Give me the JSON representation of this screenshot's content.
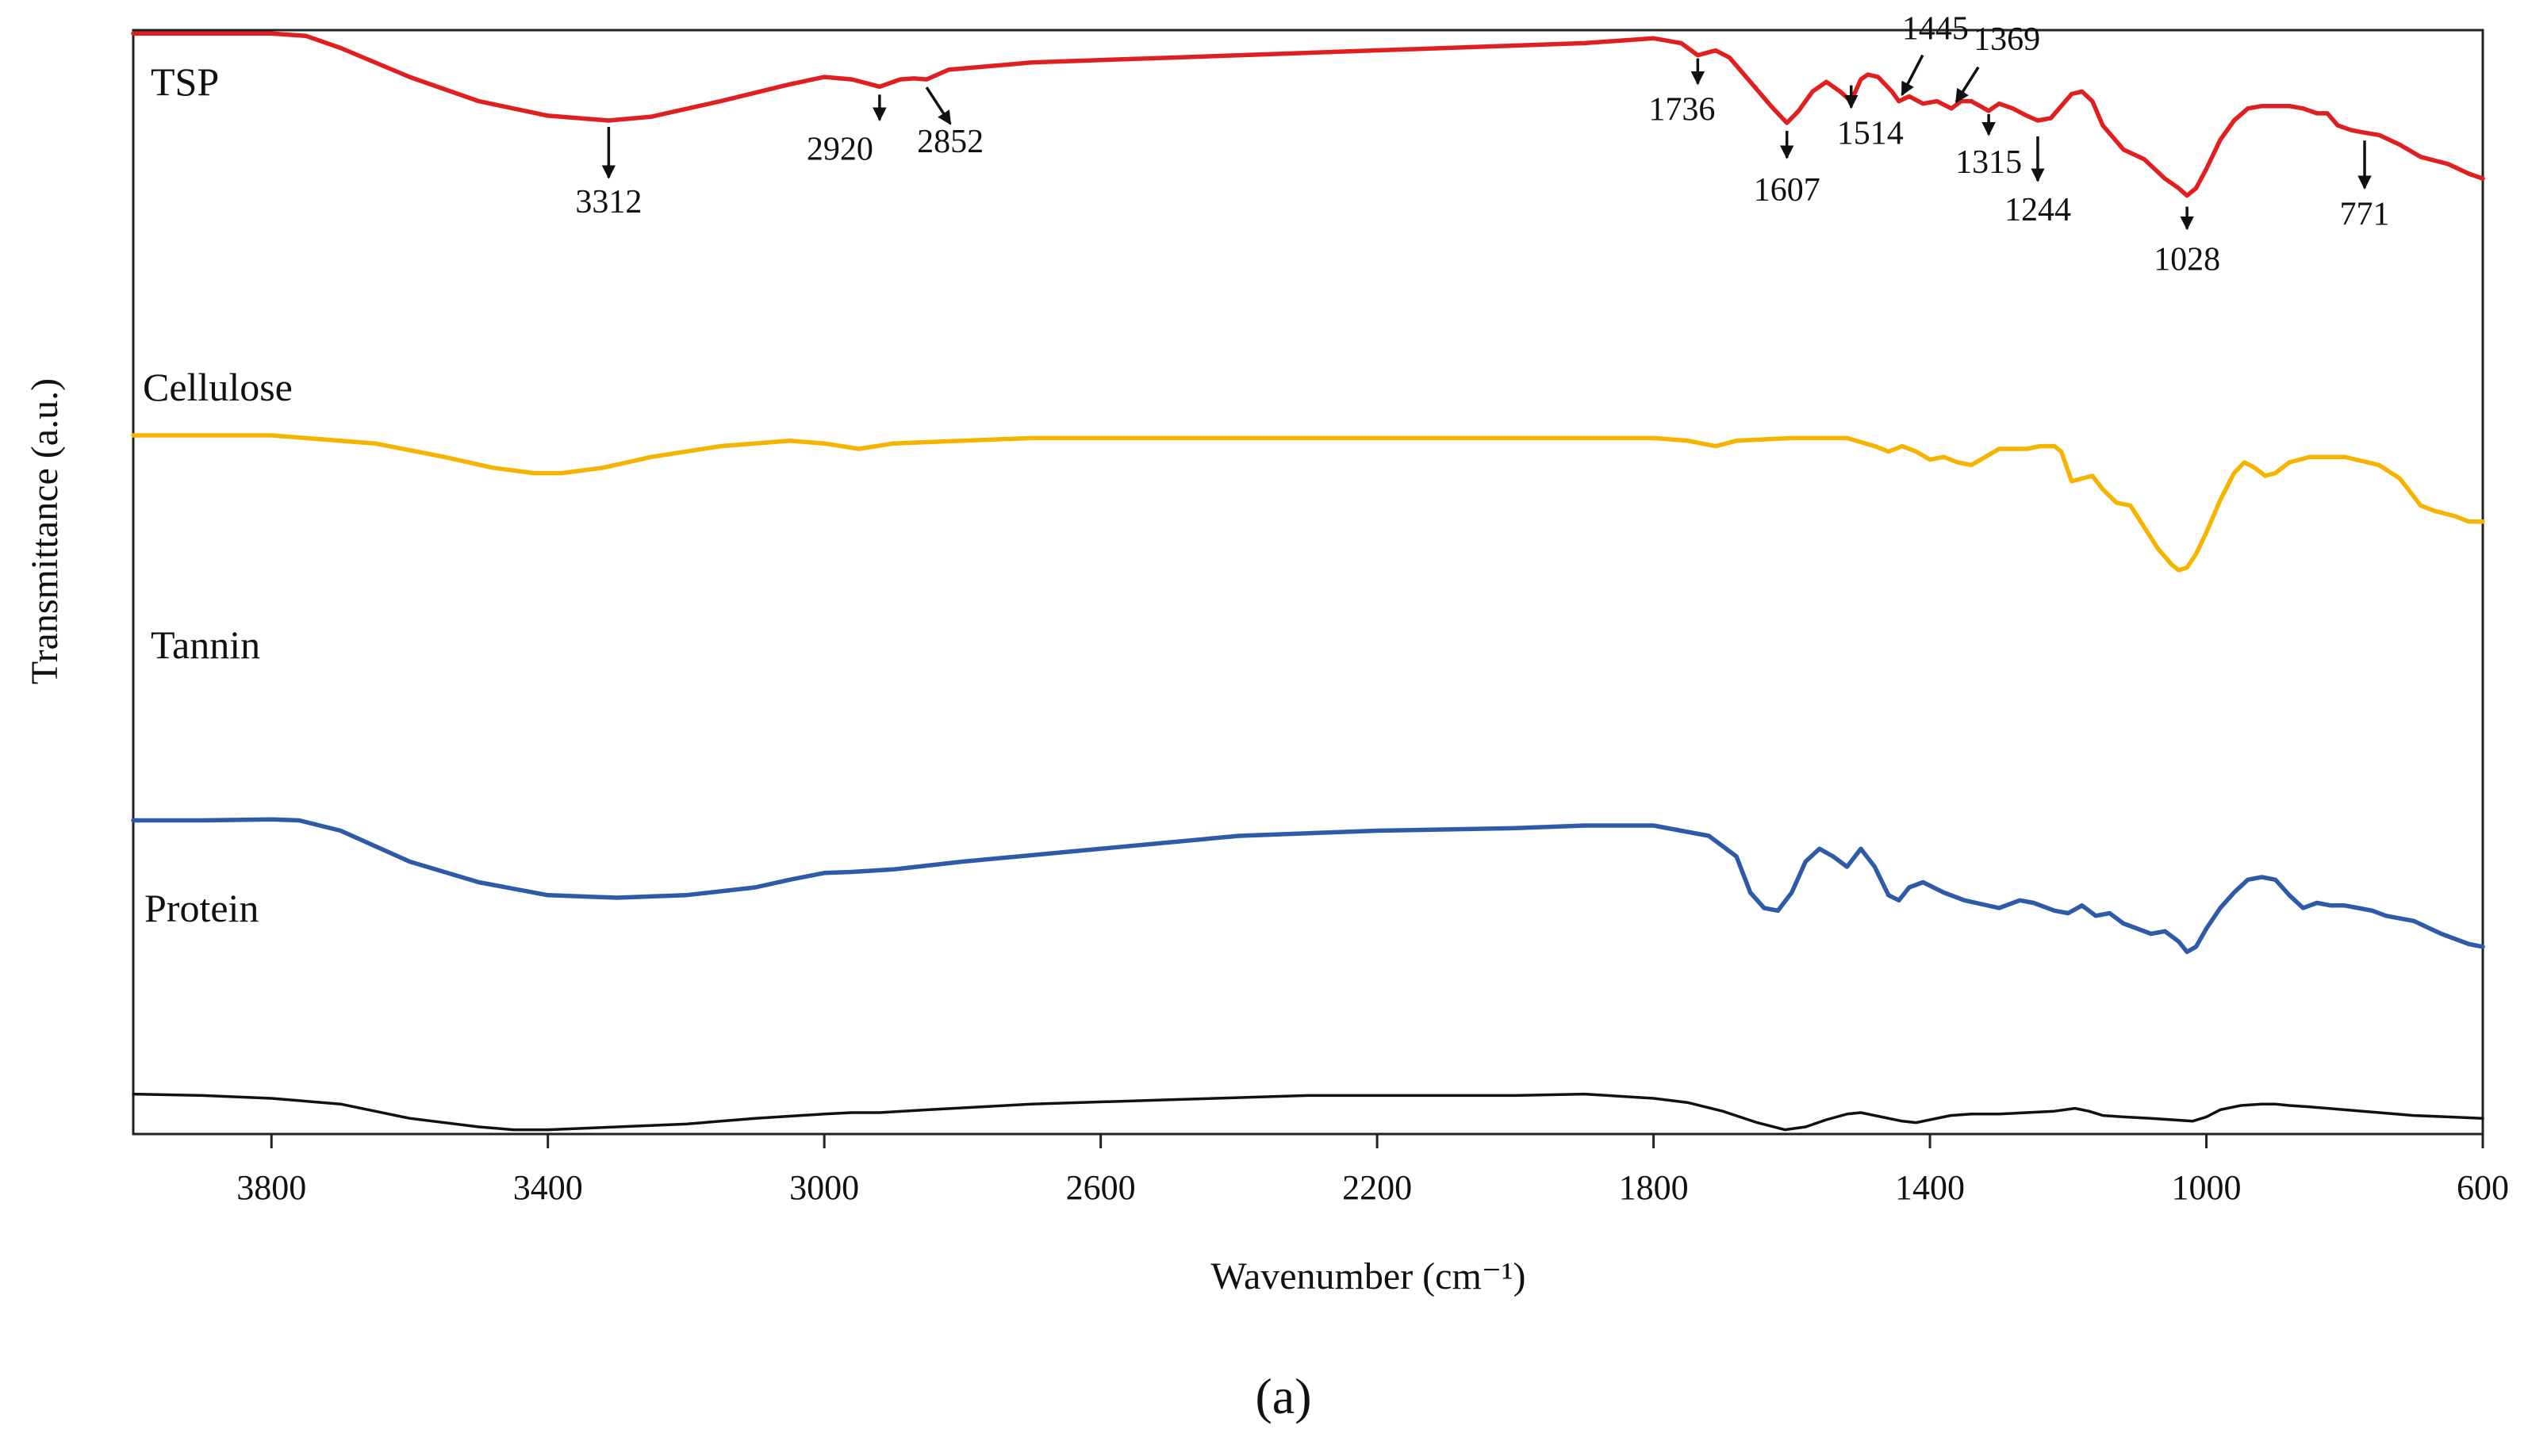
{
  "chart_data": {
    "type": "line",
    "title": "",
    "panel_label": "(a)",
    "xlabel": "Wavenumber (cm⁻¹)",
    "ylabel": "Transmittance (a.u.)",
    "xlim": [
      4000,
      600
    ],
    "x_reversed": true,
    "ylim": [
      0,
      100
    ],
    "grid": false,
    "xticks": [
      3800,
      3400,
      3000,
      2600,
      2200,
      1800,
      1400,
      1000,
      600
    ],
    "yticks": [],
    "series": [
      {
        "name": "TSP",
        "color": "#e02020",
        "points": [
          [
            4000,
            98
          ],
          [
            3900,
            98
          ],
          [
            3800,
            98
          ],
          [
            3750,
            97.5
          ],
          [
            3700,
            95
          ],
          [
            3600,
            89
          ],
          [
            3500,
            84
          ],
          [
            3400,
            81
          ],
          [
            3312,
            80
          ],
          [
            3250,
            80.8
          ],
          [
            3150,
            84
          ],
          [
            3050,
            87.5
          ],
          [
            3000,
            89
          ],
          [
            2960,
            88.5
          ],
          [
            2920,
            87
          ],
          [
            2890,
            88.5
          ],
          [
            2870,
            88.7
          ],
          [
            2852,
            88.5
          ],
          [
            2820,
            90.5
          ],
          [
            2700,
            92
          ],
          [
            2500,
            93
          ],
          [
            2300,
            94
          ],
          [
            2100,
            95
          ],
          [
            1900,
            96
          ],
          [
            1800,
            97
          ],
          [
            1760,
            96
          ],
          [
            1736,
            93.5
          ],
          [
            1710,
            94.5
          ],
          [
            1690,
            93
          ],
          [
            1660,
            88
          ],
          [
            1630,
            83
          ],
          [
            1607,
            79.5
          ],
          [
            1590,
            82
          ],
          [
            1570,
            86
          ],
          [
            1550,
            88
          ],
          [
            1530,
            86
          ],
          [
            1514,
            84
          ],
          [
            1500,
            88.5
          ],
          [
            1490,
            89.5
          ],
          [
            1475,
            89
          ],
          [
            1455,
            86
          ],
          [
            1445,
            84
          ],
          [
            1430,
            85
          ],
          [
            1410,
            83.5
          ],
          [
            1390,
            84
          ],
          [
            1369,
            82.5
          ],
          [
            1355,
            84
          ],
          [
            1340,
            84
          ],
          [
            1315,
            82
          ],
          [
            1300,
            83.5
          ],
          [
            1280,
            82.5
          ],
          [
            1260,
            81
          ],
          [
            1244,
            80
          ],
          [
            1225,
            80.5
          ],
          [
            1210,
            83
          ],
          [
            1195,
            85.5
          ],
          [
            1180,
            86
          ],
          [
            1165,
            84
          ],
          [
            1150,
            79
          ],
          [
            1120,
            74
          ],
          [
            1090,
            72
          ],
          [
            1060,
            68
          ],
          [
            1040,
            66
          ],
          [
            1028,
            64.5
          ],
          [
            1015,
            66
          ],
          [
            1000,
            70
          ],
          [
            980,
            76
          ],
          [
            960,
            80
          ],
          [
            940,
            82.5
          ],
          [
            920,
            83
          ],
          [
            900,
            83
          ],
          [
            880,
            83
          ],
          [
            860,
            82.5
          ],
          [
            840,
            81.5
          ],
          [
            825,
            81.5
          ],
          [
            810,
            79
          ],
          [
            790,
            78
          ],
          [
            771,
            77.5
          ],
          [
            750,
            77
          ],
          [
            720,
            75
          ],
          [
            690,
            72.5
          ],
          [
            650,
            71
          ],
          [
            620,
            69
          ],
          [
            600,
            68
          ]
        ]
      },
      {
        "name": "Cellulose",
        "color": "#f5b400",
        "points": [
          [
            4000,
            70
          ],
          [
            3800,
            70
          ],
          [
            3750,
            69.5
          ],
          [
            3650,
            68.5
          ],
          [
            3550,
            66
          ],
          [
            3480,
            64
          ],
          [
            3420,
            63
          ],
          [
            3380,
            63
          ],
          [
            3320,
            64
          ],
          [
            3250,
            66
          ],
          [
            3150,
            68
          ],
          [
            3050,
            69
          ],
          [
            3000,
            68.5
          ],
          [
            2950,
            67.5
          ],
          [
            2900,
            68.5
          ],
          [
            2800,
            69
          ],
          [
            2700,
            69.5
          ],
          [
            2400,
            69.5
          ],
          [
            2100,
            69.5
          ],
          [
            1900,
            69.5
          ],
          [
            1800,
            69.5
          ],
          [
            1750,
            69
          ],
          [
            1710,
            68
          ],
          [
            1680,
            69
          ],
          [
            1600,
            69.5
          ],
          [
            1520,
            69.5
          ],
          [
            1480,
            68
          ],
          [
            1460,
            67
          ],
          [
            1440,
            68
          ],
          [
            1420,
            67
          ],
          [
            1400,
            65.5
          ],
          [
            1380,
            66
          ],
          [
            1360,
            65
          ],
          [
            1340,
            64.5
          ],
          [
            1320,
            66
          ],
          [
            1300,
            67.5
          ],
          [
            1280,
            67.5
          ],
          [
            1260,
            67.5
          ],
          [
            1240,
            68
          ],
          [
            1220,
            68
          ],
          [
            1210,
            67
          ],
          [
            1195,
            61.5
          ],
          [
            1180,
            62
          ],
          [
            1165,
            62.5
          ],
          [
            1150,
            60
          ],
          [
            1130,
            57.5
          ],
          [
            1110,
            57
          ],
          [
            1090,
            53
          ],
          [
            1070,
            49
          ],
          [
            1050,
            46
          ],
          [
            1040,
            45
          ],
          [
            1028,
            45.5
          ],
          [
            1015,
            48
          ],
          [
            1000,
            52
          ],
          [
            980,
            58
          ],
          [
            960,
            63
          ],
          [
            945,
            65
          ],
          [
            930,
            64
          ],
          [
            915,
            62.5
          ],
          [
            900,
            63
          ],
          [
            880,
            65
          ],
          [
            850,
            66
          ],
          [
            800,
            66
          ],
          [
            750,
            64.5
          ],
          [
            720,
            62
          ],
          [
            690,
            57
          ],
          [
            670,
            56
          ],
          [
            640,
            55
          ],
          [
            620,
            54
          ],
          [
            600,
            54
          ]
        ]
      },
      {
        "name": "Tannin",
        "color": "#2f5aa8",
        "points": [
          [
            4000,
            47
          ],
          [
            3900,
            47
          ],
          [
            3800,
            47.2
          ],
          [
            3760,
            47
          ],
          [
            3700,
            45
          ],
          [
            3600,
            39
          ],
          [
            3500,
            35
          ],
          [
            3400,
            32.5
          ],
          [
            3300,
            32
          ],
          [
            3200,
            32.5
          ],
          [
            3100,
            34
          ],
          [
            3050,
            35.5
          ],
          [
            3000,
            36.8
          ],
          [
            2960,
            37
          ],
          [
            2900,
            37.5
          ],
          [
            2800,
            39
          ],
          [
            2600,
            41.5
          ],
          [
            2400,
            44
          ],
          [
            2200,
            45
          ],
          [
            2000,
            45.5
          ],
          [
            1900,
            46
          ],
          [
            1800,
            46
          ],
          [
            1760,
            45
          ],
          [
            1720,
            44
          ],
          [
            1680,
            40
          ],
          [
            1660,
            33
          ],
          [
            1640,
            30
          ],
          [
            1620,
            29.5
          ],
          [
            1600,
            33
          ],
          [
            1580,
            39
          ],
          [
            1560,
            41.5
          ],
          [
            1540,
            40
          ],
          [
            1520,
            38
          ],
          [
            1500,
            41.5
          ],
          [
            1480,
            38
          ],
          [
            1460,
            32.5
          ],
          [
            1445,
            31.5
          ],
          [
            1430,
            34
          ],
          [
            1410,
            35
          ],
          [
            1380,
            33
          ],
          [
            1350,
            31.5
          ],
          [
            1300,
            30
          ],
          [
            1270,
            31.5
          ],
          [
            1250,
            31
          ],
          [
            1220,
            29.5
          ],
          [
            1200,
            29
          ],
          [
            1180,
            30.5
          ],
          [
            1160,
            28.5
          ],
          [
            1140,
            29
          ],
          [
            1120,
            27
          ],
          [
            1100,
            26
          ],
          [
            1080,
            25
          ],
          [
            1060,
            25.5
          ],
          [
            1040,
            23.5
          ],
          [
            1028,
            21.5
          ],
          [
            1015,
            22.5
          ],
          [
            1000,
            26
          ],
          [
            980,
            30
          ],
          [
            960,
            33
          ],
          [
            940,
            35.5
          ],
          [
            920,
            36
          ],
          [
            900,
            35.5
          ],
          [
            880,
            32.5
          ],
          [
            860,
            30
          ],
          [
            840,
            31
          ],
          [
            820,
            30.5
          ],
          [
            800,
            30.5
          ],
          [
            780,
            30
          ],
          [
            760,
            29.5
          ],
          [
            740,
            28.5
          ],
          [
            700,
            27.5
          ],
          [
            660,
            25
          ],
          [
            620,
            23
          ],
          [
            600,
            22.5
          ]
        ]
      },
      {
        "name": "Protein",
        "color": "#111111",
        "points": [
          [
            4000,
            14
          ],
          [
            3900,
            13.5
          ],
          [
            3800,
            12.5
          ],
          [
            3700,
            10.5
          ],
          [
            3650,
            8
          ],
          [
            3600,
            5.5
          ],
          [
            3500,
            2.5
          ],
          [
            3450,
            1.5
          ],
          [
            3400,
            1.5
          ],
          [
            3300,
            2.5
          ],
          [
            3200,
            3.5
          ],
          [
            3100,
            5.5
          ],
          [
            3000,
            7
          ],
          [
            2960,
            7.5
          ],
          [
            2920,
            7.5
          ],
          [
            2850,
            8.5
          ],
          [
            2700,
            10.5
          ],
          [
            2500,
            12
          ],
          [
            2300,
            13.5
          ],
          [
            2100,
            13.5
          ],
          [
            2000,
            13.5
          ],
          [
            1900,
            14
          ],
          [
            1800,
            12.5
          ],
          [
            1750,
            11
          ],
          [
            1700,
            8
          ],
          [
            1650,
            4
          ],
          [
            1610,
            1.5
          ],
          [
            1580,
            2.5
          ],
          [
            1550,
            5
          ],
          [
            1520,
            7
          ],
          [
            1500,
            7.5
          ],
          [
            1480,
            6.5
          ],
          [
            1440,
            4.5
          ],
          [
            1420,
            4
          ],
          [
            1400,
            5
          ],
          [
            1370,
            6.5
          ],
          [
            1340,
            7
          ],
          [
            1300,
            7
          ],
          [
            1260,
            7.5
          ],
          [
            1220,
            8
          ],
          [
            1190,
            9
          ],
          [
            1170,
            8
          ],
          [
            1150,
            6.5
          ],
          [
            1120,
            6
          ],
          [
            1080,
            5.5
          ],
          [
            1050,
            5
          ],
          [
            1020,
            4.5
          ],
          [
            1000,
            6
          ],
          [
            980,
            8.5
          ],
          [
            950,
            10
          ],
          [
            920,
            10.5
          ],
          [
            900,
            10.5
          ],
          [
            880,
            10
          ],
          [
            850,
            9.5
          ],
          [
            800,
            8.5
          ],
          [
            750,
            7.5
          ],
          [
            700,
            6.5
          ],
          [
            650,
            6
          ],
          [
            600,
            5.5
          ]
        ]
      }
    ],
    "annotations": [
      {
        "series": "TSP",
        "label": "3312",
        "x": 3312,
        "dir": "below"
      },
      {
        "series": "TSP",
        "label": "2920",
        "x": 2920,
        "dir": "below"
      },
      {
        "series": "TSP",
        "label": "2852",
        "x": 2852,
        "dir": "diag-below"
      },
      {
        "series": "TSP",
        "label": "1736",
        "x": 1736,
        "dir": "above-below"
      },
      {
        "series": "TSP",
        "label": "1607",
        "x": 1607,
        "dir": "below"
      },
      {
        "series": "TSP",
        "label": "1514",
        "x": 1514,
        "dir": "below-right"
      },
      {
        "series": "TSP",
        "label": "1445",
        "x": 1445,
        "dir": "diag-above"
      },
      {
        "series": "TSP",
        "label": "1369",
        "x": 1369,
        "dir": "diag-above-right"
      },
      {
        "series": "TSP",
        "label": "1315",
        "x": 1315,
        "dir": "below"
      },
      {
        "series": "TSP",
        "label": "1244",
        "x": 1244,
        "dir": "below-long"
      },
      {
        "series": "TSP",
        "label": "1028",
        "x": 1028,
        "dir": "below"
      },
      {
        "series": "TSP",
        "label": "771",
        "x": 771,
        "dir": "below"
      }
    ]
  }
}
